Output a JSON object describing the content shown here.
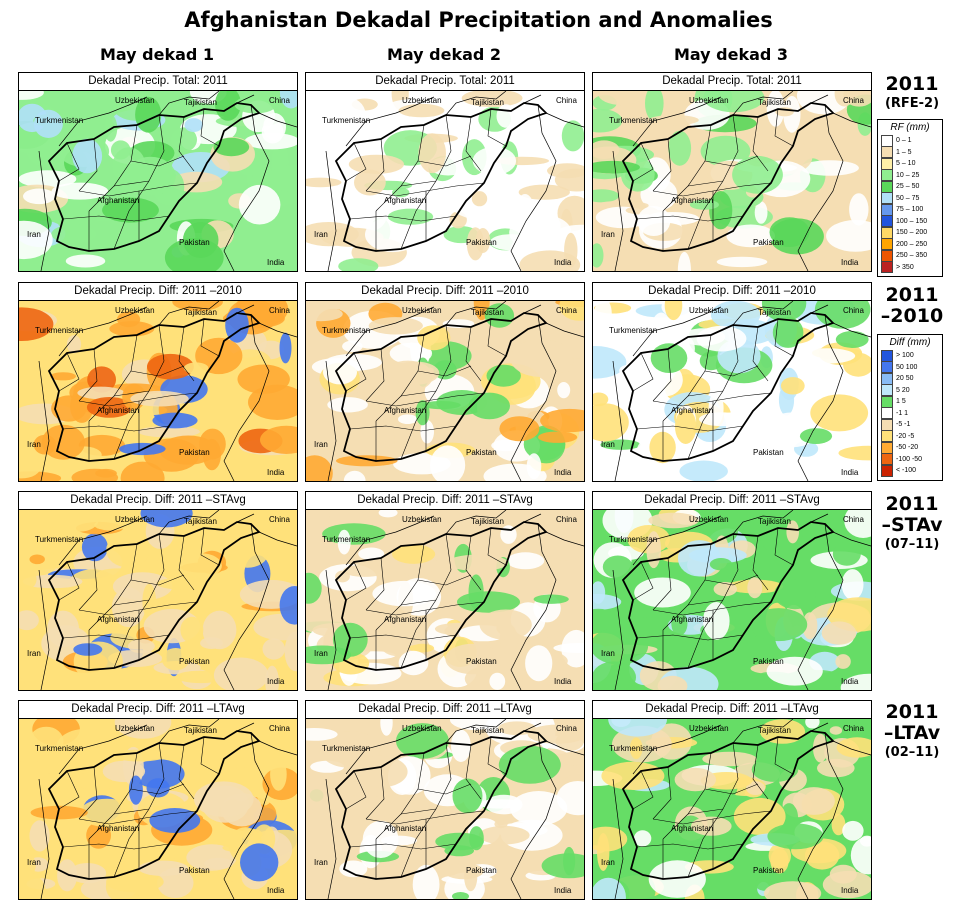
{
  "title": "Afghanistan Dekadal Precipitation and Anomalies",
  "columns": [
    "May dekad 1",
    "May dekad 2",
    "May dekad 3"
  ],
  "rows": [
    {
      "head": "2011",
      "sub": "(RFE-2)",
      "panel_title": "Dekadal Precip. Total: 2011"
    },
    {
      "head": "2011\n–2010",
      "sub": "",
      "panel_title": "Dekadal Precip. Diff:  2011 –2010"
    },
    {
      "head": "2011\n–STAv",
      "sub": "(07–11)",
      "panel_title": "Dekadal Precip. Diff:  2011 –STAvg"
    },
    {
      "head": "2011\n–LTAv",
      "sub": "(02–11)",
      "panel_title": "Dekadal Precip. Diff:  2011 –LTAvg"
    }
  ],
  "map_labels": {
    "uzbekistan": "Uzbekistan",
    "tajikistan": "Tajikistan",
    "china": "China",
    "turkmenistan": "Turkmenistan",
    "afghanistan": "Afghanistan",
    "iran": "Iran",
    "pakistan": "Pakistan",
    "india": "India"
  },
  "legend_rf": {
    "title": "RF (mm)",
    "entries": [
      {
        "label": "0 – 1",
        "color": "#ffffff"
      },
      {
        "label": "1 – 5",
        "color": "#f5deb3"
      },
      {
        "label": "5 – 10",
        "color": "#fff0a8"
      },
      {
        "label": "10 – 25",
        "color": "#90ee90"
      },
      {
        "label": "25 – 50",
        "color": "#5ad75a"
      },
      {
        "label": "50 – 75",
        "color": "#b0e0f8"
      },
      {
        "label": "75 – 100",
        "color": "#6699ee"
      },
      {
        "label": "100 – 150",
        "color": "#2255dd"
      },
      {
        "label": "150 – 200",
        "color": "#ffd966"
      },
      {
        "label": "200 – 250",
        "color": "#ffa500"
      },
      {
        "label": "250 – 350",
        "color": "#ee5500"
      },
      {
        "label": "> 350",
        "color": "#bb2222"
      }
    ]
  },
  "legend_diff": {
    "title": "Diff (mm)",
    "entries": [
      {
        "label": "> 100",
        "color": "#2255dd"
      },
      {
        "label": "50  100",
        "color": "#4477ee"
      },
      {
        "label": "20  50",
        "color": "#88bbf5"
      },
      {
        "label": "5  20",
        "color": "#bfe8fb"
      },
      {
        "label": "1  5",
        "color": "#66dd66"
      },
      {
        "label": "-1  1",
        "color": "#ffffff"
      },
      {
        "label": "-5  -1",
        "color": "#f5deb3"
      },
      {
        "label": "-20  -5",
        "color": "#ffe17a"
      },
      {
        "label": "-50  -20",
        "color": "#ffaa33"
      },
      {
        "label": "-100  -50",
        "color": "#ee6611"
      },
      {
        "label": "< -100",
        "color": "#cc2200"
      }
    ]
  },
  "panel_palettes": [
    [
      [
        "#90ee90",
        "#90ee90",
        "#ffffff",
        "#f5deb3",
        "#b0e0f8",
        "#ffffff",
        "#90ee90",
        "#5ad75a"
      ],
      [
        "#f5deb3",
        "#ffffff",
        "#ffffff",
        "#ffffff",
        "#90ee90",
        "#f5deb3",
        "#ffffff",
        "#90ee90"
      ],
      [
        "#ffffff",
        "#f5deb3",
        "#90ee90",
        "#ffffff",
        "#90ee90",
        "#f5deb3",
        "#90ee90",
        "#5ad75a"
      ]
    ],
    [
      [
        "#ffaa33",
        "#ffe17a",
        "#ffaa33",
        "#ee6611",
        "#ffe17a",
        "#4477ee",
        "#f5deb3",
        "#ffaa33"
      ],
      [
        "#ffffff",
        "#f5deb3",
        "#ffffff",
        "#f5deb3",
        "#ffaa33",
        "#66dd66",
        "#ffffff",
        "#ffe17a"
      ],
      [
        "#ffe17a",
        "#ffffff",
        "#bfe8fb",
        "#ffffff",
        "#66dd66",
        "#ffe17a",
        "#bfe8fb",
        "#ffffff"
      ]
    ],
    [
      [
        "#ffe17a",
        "#ffe17a",
        "#f5deb3",
        "#ffaa33",
        "#ffe17a",
        "#4477ee",
        "#ffe17a",
        "#f5deb3"
      ],
      [
        "#ffffff",
        "#f5deb3",
        "#ffffff",
        "#f5deb3",
        "#ffe17a",
        "#66dd66",
        "#f5deb3",
        "#ffffff"
      ],
      [
        "#f5deb3",
        "#66dd66",
        "#ffffff",
        "#bfe8fb",
        "#66dd66",
        "#f5deb3",
        "#ffe17a",
        "#bfe8fb"
      ]
    ],
    [
      [
        "#ffe17a",
        "#ffe17a",
        "#f5deb3",
        "#ffaa33",
        "#ffe17a",
        "#4477ee",
        "#ffe17a",
        "#f5deb3"
      ],
      [
        "#ffffff",
        "#f5deb3",
        "#ffffff",
        "#f5deb3",
        "#f5deb3",
        "#66dd66",
        "#f5deb3",
        "#ffffff"
      ],
      [
        "#ffe17a",
        "#66dd66",
        "#ffffff",
        "#f5deb3",
        "#66dd66",
        "#ffe17a",
        "#bfe8fb",
        "#f5deb3"
      ]
    ]
  ]
}
